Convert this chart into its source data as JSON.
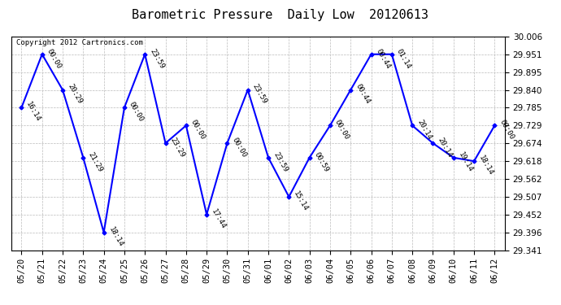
{
  "title": "Barometric Pressure  Daily Low  20120613",
  "copyright": "Copyright 2012 Cartronics.com",
  "x_labels": [
    "05/20",
    "05/21",
    "05/22",
    "05/23",
    "05/24",
    "05/25",
    "05/26",
    "05/27",
    "05/28",
    "05/29",
    "05/30",
    "05/31",
    "06/01",
    "06/02",
    "06/03",
    "06/04",
    "06/05",
    "06/06",
    "06/07",
    "06/08",
    "06/09",
    "06/10",
    "06/11",
    "06/12"
  ],
  "y_values": [
    29.785,
    29.951,
    29.84,
    29.629,
    29.396,
    29.785,
    29.951,
    29.674,
    29.729,
    29.452,
    29.674,
    29.84,
    29.629,
    29.507,
    29.629,
    29.729,
    29.84,
    29.951,
    29.951,
    29.729,
    29.674,
    29.629,
    29.618,
    29.729
  ],
  "point_labels": [
    "16:14",
    "00:00",
    "20:29",
    "21:29",
    "18:14",
    "00:00",
    "23:59",
    "23:29",
    "00:00",
    "17:44",
    "00:00",
    "23:59",
    "23:59",
    "15:14",
    "00:59",
    "00:00",
    "00:44",
    "00:44",
    "01:14",
    "20:14",
    "20:14",
    "19:14",
    "18:14",
    "00:00"
  ],
  "ylim_min": 29.341,
  "ylim_max": 30.006,
  "y_ticks": [
    29.341,
    29.396,
    29.452,
    29.507,
    29.562,
    29.618,
    29.674,
    29.729,
    29.785,
    29.84,
    29.895,
    29.951,
    30.006
  ],
  "line_color": "blue",
  "marker_color": "blue",
  "background_color": "white",
  "grid_color": "#bbbbbb",
  "title_fontsize": 11,
  "label_fontsize": 6.5,
  "tick_fontsize": 7.5,
  "copyright_fontsize": 6.5
}
